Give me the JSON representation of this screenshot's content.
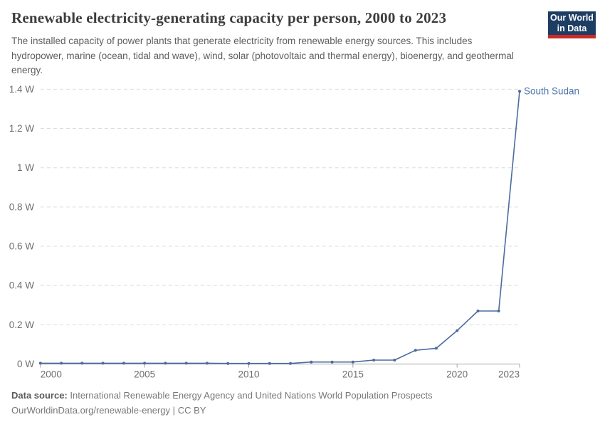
{
  "header": {
    "logo": {
      "line1": "Our World",
      "line2": "in Data"
    }
  },
  "chart_data": {
    "type": "line",
    "title": "Renewable electricity-generating capacity per person, 2000 to 2023",
    "subtitle": "The installed capacity of power plants that generate electricity from renewable energy sources. This includes hydropower, marine (ocean, tidal and wave), wind, solar (photovoltaic and thermal energy), bioenergy, and geothermal energy.",
    "unit": "W",
    "xlabel": "",
    "ylabel": "",
    "xlim": [
      2000,
      2023
    ],
    "ylim": [
      0,
      1.4
    ],
    "grid": "horizontal-dashed",
    "x_ticks": [
      2000,
      2005,
      2010,
      2015,
      2020,
      2023
    ],
    "y_ticks": [
      {
        "value": 0,
        "label": "0 W"
      },
      {
        "value": 0.2,
        "label": "0.2 W"
      },
      {
        "value": 0.4,
        "label": "0.4 W"
      },
      {
        "value": 0.6,
        "label": "0.6 W"
      },
      {
        "value": 0.8,
        "label": "0.8 W"
      },
      {
        "value": 1,
        "label": "1 W"
      },
      {
        "value": 1.2,
        "label": "1.2 W"
      },
      {
        "value": 1.4,
        "label": "1.4 W"
      }
    ],
    "series": [
      {
        "name": "South Sudan",
        "color": "#4c6b9e",
        "x": [
          2000,
          2001,
          2002,
          2003,
          2004,
          2005,
          2006,
          2007,
          2008,
          2009,
          2010,
          2011,
          2012,
          2013,
          2014,
          2015,
          2016,
          2017,
          2018,
          2019,
          2020,
          2021,
          2022,
          2023
        ],
        "values": [
          0.004,
          0.004,
          0.004,
          0.004,
          0.004,
          0.004,
          0.004,
          0.004,
          0.004,
          0.003,
          0.003,
          0.003,
          0.003,
          0.01,
          0.01,
          0.01,
          0.02,
          0.02,
          0.07,
          0.08,
          0.17,
          0.27,
          0.27,
          1.39
        ]
      }
    ],
    "legend_position": "end-of-line-label"
  },
  "colors": {
    "series": "#4c6b9e",
    "end_label": "#4d74ab",
    "gridline": "#dcdcdc",
    "axis_line": "#a3a3a3",
    "axis_text": "#6e6e6e",
    "title_text": "#3d3d3d",
    "logo_bg": "#1d3d63",
    "logo_red": "#cc2a26"
  },
  "footer": {
    "source_label": "Data source:",
    "source_text": "International Renewable Energy Agency and United Nations World Population Prospects",
    "url": "OurWorldinData.org/renewable-energy",
    "separator": "|",
    "license": "CC BY"
  }
}
